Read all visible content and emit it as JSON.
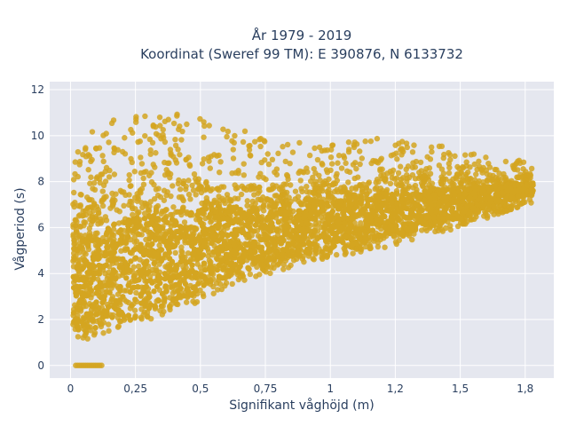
{
  "chart_data": {
    "type": "scatter",
    "title_line1": "År 1979 - 2019",
    "title_line2": "Koordinat (Sweref 99 TM): E 390876, N 6133732",
    "xlabel": "Signifikant våghöjd (m)",
    "ylabel": "Vågperiod (s)",
    "xlim": [
      -0.08,
      1.86
    ],
    "ylim": [
      -0.55,
      12.35
    ],
    "x_ticks": [
      {
        "value": 0,
        "label": "0"
      },
      {
        "value": 0.25,
        "label": "0,25"
      },
      {
        "value": 0.5,
        "label": "0,5"
      },
      {
        "value": 0.75,
        "label": "0,75"
      },
      {
        "value": 1,
        "label": "1"
      },
      {
        "value": 1.25,
        "label": "1,2"
      },
      {
        "value": 1.5,
        "label": "1,5"
      },
      {
        "value": 1.75,
        "label": "1,8"
      }
    ],
    "y_ticks": [
      {
        "value": 0,
        "label": "0"
      },
      {
        "value": 2,
        "label": "2"
      },
      {
        "value": 4,
        "label": "4"
      },
      {
        "value": 6,
        "label": "6"
      },
      {
        "value": 8,
        "label": "8"
      },
      {
        "value": 10,
        "label": "10"
      },
      {
        "value": 12,
        "label": "12"
      }
    ],
    "grid": true,
    "point_color": "#d4a520",
    "background_color": "#e5e7ef",
    "grid_color": "#ffffff",
    "density_envelope": [
      {
        "x": 0.01,
        "y_min": 1.2,
        "y_max": 9.0
      },
      {
        "x": 0.05,
        "y_min": 1.1,
        "y_max": 10.0
      },
      {
        "x": 0.1,
        "y_min": 1.2,
        "y_max": 10.6
      },
      {
        "x": 0.15,
        "y_min": 1.4,
        "y_max": 10.9
      },
      {
        "x": 0.2,
        "y_min": 1.7,
        "y_max": 11.0
      },
      {
        "x": 0.3,
        "y_min": 2.0,
        "y_max": 11.1
      },
      {
        "x": 0.4,
        "y_min": 2.3,
        "y_max": 11.0
      },
      {
        "x": 0.5,
        "y_min": 2.8,
        "y_max": 10.8
      },
      {
        "x": 0.6,
        "y_min": 3.4,
        "y_max": 10.5
      },
      {
        "x": 0.7,
        "y_min": 3.8,
        "y_max": 10.2
      },
      {
        "x": 0.8,
        "y_min": 4.1,
        "y_max": 9.9
      },
      {
        "x": 0.9,
        "y_min": 4.4,
        "y_max": 9.8
      },
      {
        "x": 1.0,
        "y_min": 4.6,
        "y_max": 9.8
      },
      {
        "x": 1.1,
        "y_min": 4.9,
        "y_max": 9.8
      },
      {
        "x": 1.2,
        "y_min": 5.1,
        "y_max": 9.9
      },
      {
        "x": 1.3,
        "y_min": 5.4,
        "y_max": 9.8
      },
      {
        "x": 1.4,
        "y_min": 5.7,
        "y_max": 9.6
      },
      {
        "x": 1.5,
        "y_min": 6.0,
        "y_max": 9.4
      },
      {
        "x": 1.6,
        "y_min": 6.4,
        "y_max": 9.2
      },
      {
        "x": 1.7,
        "y_min": 6.8,
        "y_max": 9.0
      },
      {
        "x": 1.78,
        "y_min": 7.1,
        "y_max": 8.8
      }
    ],
    "zero_period_points": {
      "x_min": 0.02,
      "x_max": 0.12,
      "y": 0
    }
  }
}
